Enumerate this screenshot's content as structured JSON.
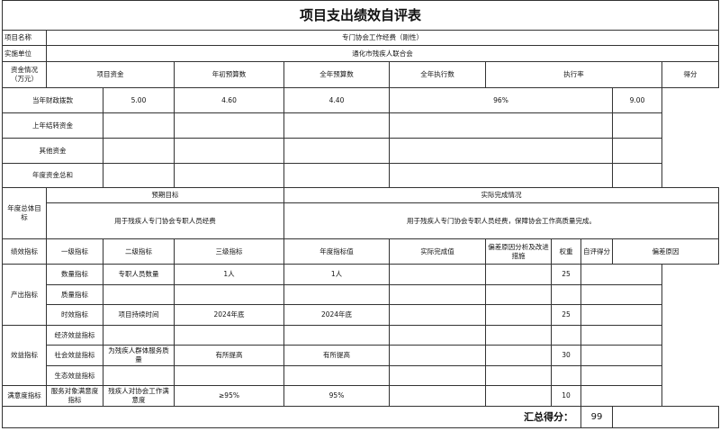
{
  "title": "项目支出绩效自评表",
  "project": {
    "name_label": "项目名称",
    "name": "专门协会工作经费（刚性）",
    "unit_label": "实施单位",
    "unit": "通化市残疾人联合会"
  },
  "funds": {
    "section_label": "资金情况（万元）",
    "headers": [
      "项目资金",
      "年初预算数",
      "全年预算数",
      "全年执行数",
      "执行率",
      "得分"
    ],
    "rows": [
      [
        "当年财政拨款",
        "5.00",
        "4.60",
        "4.40",
        "96%",
        "9.00"
      ],
      [
        "上年结转资金",
        "",
        "",
        "",
        "",
        ""
      ],
      [
        "其他资金",
        "",
        "",
        "",
        "",
        ""
      ],
      [
        "年度资金总和",
        "",
        "",
        "",
        "",
        ""
      ]
    ]
  },
  "goals": {
    "section_label": "年度总体目标",
    "expected_label": "预期目标",
    "actual_label": "实际完成情况",
    "expected": "用于残疾人专门协会专职人员经费",
    "actual": "用于残疾人专门协会专职人员经费，保障协会工作高质量完成。"
  },
  "performance": {
    "section_label": "绩效指标",
    "headers": [
      "一级指标",
      "二级指标",
      "三级指标",
      "年度指标值",
      "实际完成值",
      "偏差原因分析及改进措施",
      "权重",
      "自评得分",
      "偏差原因"
    ],
    "groups": [
      {
        "level1": "产出指标",
        "rows": [
          {
            "level2": "数量指标",
            "level3": "专职人员数量",
            "target": "1人",
            "actual": "1人",
            "score": "25"
          },
          {
            "level2": "质量指标",
            "level3": "",
            "target": "",
            "actual": "",
            "score": ""
          },
          {
            "level2": "时效指标",
            "level3": "项目持续时间",
            "target": "2024年底",
            "actual": "2024年底",
            "score": "25"
          }
        ]
      },
      {
        "level1": "效益指标",
        "rows": [
          {
            "level2": "经济效益指标",
            "level3": "",
            "target": "",
            "actual": "",
            "score": ""
          },
          {
            "level2": "社会效益指标",
            "level3": "为残疾人群体服务质量",
            "target": "有所提高",
            "actual": "有所提高",
            "score": "30"
          },
          {
            "level2": "生态效益指标",
            "level3": "",
            "target": "",
            "actual": "",
            "score": ""
          }
        ]
      },
      {
        "level1": "满意度指标",
        "rows": [
          {
            "level2": "服务对象满意度指标",
            "level3": "残疾人对协会工作满意度",
            "target": "≥95%",
            "actual": "95%",
            "score": "10"
          }
        ]
      }
    ],
    "total_label": "汇总得分：",
    "total": "99"
  }
}
